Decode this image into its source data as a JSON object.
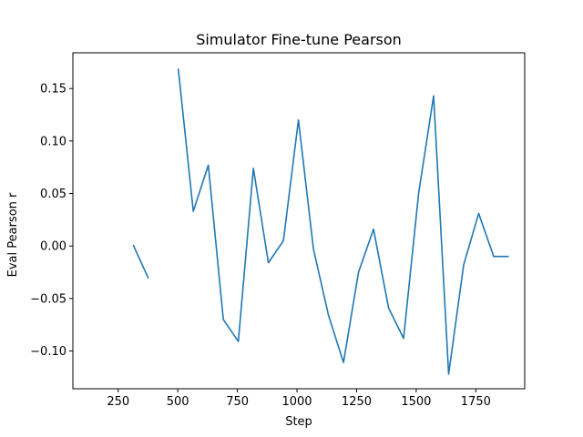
{
  "chart_data": {
    "type": "line",
    "title": "Simulator Fine-tune Pearson",
    "xlabel": "Step",
    "ylabel": "Eval Pearson r",
    "xlim": [
      60,
      1955
    ],
    "ylim": [
      -0.136,
      0.184
    ],
    "xticks": [
      250,
      500,
      750,
      1000,
      1250,
      1500,
      1750
    ],
    "xtick_labels": [
      "250",
      "500",
      "750",
      "1000",
      "1250",
      "1500",
      "1750"
    ],
    "yticks": [
      -0.1,
      -0.05,
      0.0,
      0.05,
      0.1,
      0.15
    ],
    "ytick_labels": [
      "−0.10",
      "−0.05",
      "0.00",
      "0.05",
      "0.10",
      "0.15"
    ],
    "grid": false,
    "color": "#1f77b4",
    "series": [
      {
        "segments": [
          [
            [
              313,
              0.001
            ],
            [
              377,
              -0.031
            ]
          ],
          [
            [
              502,
              0.169
            ],
            [
              565,
              0.033
            ],
            [
              628,
              0.077
            ],
            [
              691,
              -0.07
            ],
            [
              754,
              -0.091
            ],
            [
              817,
              0.074
            ],
            [
              880,
              -0.016
            ],
            [
              943,
              0.005
            ],
            [
              1006,
              0.12
            ],
            [
              1069,
              -0.003
            ],
            [
              1132,
              -0.066
            ],
            [
              1195,
              -0.111
            ],
            [
              1258,
              -0.025
            ],
            [
              1321,
              0.016
            ],
            [
              1384,
              -0.059
            ],
            [
              1447,
              -0.088
            ],
            [
              1510,
              0.05
            ],
            [
              1573,
              0.143
            ],
            [
              1636,
              -0.122
            ],
            [
              1699,
              -0.018
            ],
            [
              1762,
              0.031
            ],
            [
              1825,
              -0.01
            ],
            [
              1888,
              -0.01
            ]
          ]
        ]
      }
    ]
  }
}
